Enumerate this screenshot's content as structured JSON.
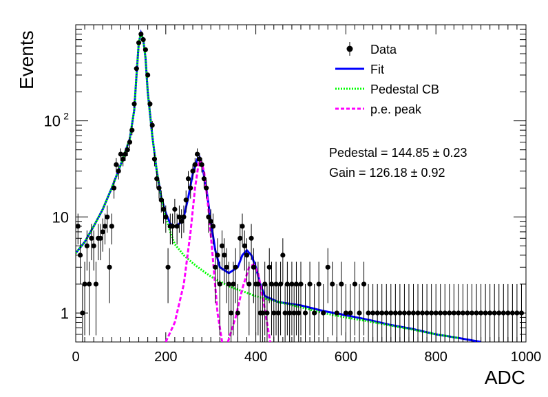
{
  "chart_data": {
    "type": "scatter",
    "xlabel": "ADC",
    "ylabel": "Events",
    "xlim": [
      0,
      1000
    ],
    "ylim": [
      0.5,
      1000
    ],
    "y_scale": "log",
    "grid": false,
    "legend_position": "top-right",
    "x_ticks": [
      {
        "value": 0,
        "label": "0"
      },
      {
        "value": 200,
        "label": "200"
      },
      {
        "value": 400,
        "label": "400"
      },
      {
        "value": 600,
        "label": "600"
      },
      {
        "value": 800,
        "label": "800"
      },
      {
        "value": 1000,
        "label": "1000"
      }
    ],
    "y_ticks": [
      {
        "value": 1,
        "label": "1"
      },
      {
        "value": 10,
        "label": "10"
      },
      {
        "value": 100,
        "label": "10",
        "sup": "2"
      }
    ],
    "legend": [
      {
        "label": "Data",
        "style": "marker",
        "color": "#000000"
      },
      {
        "label": "Fit",
        "style": "solid",
        "color": "#0000ff"
      },
      {
        "label": "Pedestal CB",
        "style": "dotted",
        "color": "#00ff00"
      },
      {
        "label": "p.e. peak",
        "style": "dashed",
        "color": "#ff00ff"
      }
    ],
    "annotations": [
      {
        "text": "Pedestal = 144.85 ± 0.23"
      },
      {
        "text": "Gain = 126.18 ± 0.92"
      }
    ],
    "series": [
      {
        "name": "Data",
        "kind": "points",
        "color": "#000000",
        "points": [
          [
            5,
            8
          ],
          [
            10,
            4
          ],
          [
            15,
            1
          ],
          [
            20,
            2
          ],
          [
            25,
            5
          ],
          [
            30,
            2
          ],
          [
            35,
            6
          ],
          [
            40,
            5
          ],
          [
            45,
            2
          ],
          [
            50,
            6
          ],
          [
            55,
            6
          ],
          [
            60,
            7
          ],
          [
            65,
            8
          ],
          [
            70,
            10
          ],
          [
            75,
            3
          ],
          [
            80,
            8
          ],
          [
            85,
            20
          ],
          [
            90,
            35
          ],
          [
            95,
            30
          ],
          [
            100,
            45
          ],
          [
            105,
            40
          ],
          [
            110,
            45
          ],
          [
            115,
            50
          ],
          [
            120,
            60
          ],
          [
            125,
            80
          ],
          [
            130,
            150
          ],
          [
            135,
            350
          ],
          [
            140,
            650
          ],
          [
            145,
            800
          ],
          [
            150,
            700
          ],
          [
            155,
            550
          ],
          [
            160,
            300
          ],
          [
            165,
            150
          ],
          [
            170,
            90
          ],
          [
            175,
            40
          ],
          [
            180,
            25
          ],
          [
            185,
            20
          ],
          [
            190,
            15
          ],
          [
            195,
            12
          ],
          [
            200,
            10
          ],
          [
            205,
            3
          ],
          [
            210,
            8
          ],
          [
            215,
            8
          ],
          [
            220,
            12
          ],
          [
            225,
            8
          ],
          [
            230,
            10
          ],
          [
            235,
            9
          ],
          [
            240,
            10
          ],
          [
            245,
            15
          ],
          [
            250,
            25
          ],
          [
            255,
            20
          ],
          [
            260,
            30
          ],
          [
            265,
            35
          ],
          [
            270,
            45
          ],
          [
            275,
            40
          ],
          [
            280,
            35
          ],
          [
            285,
            25
          ],
          [
            290,
            20
          ],
          [
            295,
            10
          ],
          [
            300,
            9
          ],
          [
            305,
            8
          ],
          [
            310,
            3
          ],
          [
            315,
            4
          ],
          [
            320,
            2
          ],
          [
            325,
            5
          ],
          [
            330,
            4
          ],
          [
            335,
            3
          ],
          [
            340,
            2
          ],
          [
            345,
            1
          ],
          [
            350,
            2
          ],
          [
            355,
            3
          ],
          [
            360,
            1
          ],
          [
            365,
            6
          ],
          [
            370,
            8
          ],
          [
            375,
            5
          ],
          [
            380,
            4
          ],
          [
            385,
            2
          ],
          [
            390,
            6
          ],
          [
            395,
            3
          ],
          [
            400,
            2
          ],
          [
            405,
            2
          ],
          [
            410,
            1
          ],
          [
            415,
            1
          ],
          [
            420,
            2
          ],
          [
            425,
            1
          ],
          [
            430,
            3
          ],
          [
            435,
            2
          ],
          [
            440,
            1
          ],
          [
            445,
            2
          ],
          [
            450,
            1
          ],
          [
            455,
            2
          ],
          [
            460,
            4
          ],
          [
            465,
            1
          ],
          [
            470,
            2
          ],
          [
            475,
            1
          ],
          [
            480,
            2
          ],
          [
            485,
            1
          ],
          [
            490,
            2
          ],
          [
            495,
            1
          ],
          [
            500,
            2
          ],
          [
            510,
            1
          ],
          [
            520,
            2
          ],
          [
            530,
            1
          ],
          [
            540,
            2
          ],
          [
            550,
            1
          ],
          [
            560,
            3
          ],
          [
            570,
            2
          ],
          [
            580,
            1
          ],
          [
            590,
            2
          ],
          [
            600,
            1
          ],
          [
            610,
            1
          ],
          [
            620,
            2
          ],
          [
            630,
            1
          ],
          [
            640,
            2
          ],
          [
            650,
            1
          ],
          [
            660,
            1
          ],
          [
            670,
            1
          ],
          [
            680,
            1
          ],
          [
            690,
            1
          ],
          [
            700,
            1
          ],
          [
            710,
            1
          ],
          [
            720,
            1
          ],
          [
            730,
            1
          ],
          [
            740,
            1
          ],
          [
            750,
            1
          ],
          [
            760,
            1
          ],
          [
            770,
            1
          ],
          [
            780,
            1
          ],
          [
            790,
            1
          ],
          [
            800,
            1
          ],
          [
            810,
            1
          ],
          [
            820,
            1
          ],
          [
            830,
            1
          ],
          [
            840,
            1
          ],
          [
            850,
            1
          ],
          [
            860,
            1
          ],
          [
            870,
            1
          ],
          [
            880,
            1
          ],
          [
            890,
            1
          ],
          [
            900,
            1
          ],
          [
            910,
            1
          ],
          [
            920,
            1
          ],
          [
            930,
            1
          ],
          [
            940,
            1
          ],
          [
            950,
            1
          ],
          [
            960,
            1
          ],
          [
            970,
            1
          ],
          [
            980,
            1
          ],
          [
            990,
            1
          ]
        ]
      },
      {
        "name": "Fit",
        "kind": "line",
        "color": "#0000ff",
        "points": [
          [
            0,
            4.2
          ],
          [
            20,
            5.5
          ],
          [
            40,
            8
          ],
          [
            60,
            12
          ],
          [
            80,
            20
          ],
          [
            100,
            35
          ],
          [
            120,
            65
          ],
          [
            130,
            130
          ],
          [
            135,
            300
          ],
          [
            140,
            650
          ],
          [
            145,
            820
          ],
          [
            150,
            700
          ],
          [
            155,
            450
          ],
          [
            160,
            200
          ],
          [
            170,
            70
          ],
          [
            180,
            30
          ],
          [
            190,
            16
          ],
          [
            200,
            11
          ],
          [
            210,
            8.5
          ],
          [
            220,
            8
          ],
          [
            230,
            8.5
          ],
          [
            240,
            10
          ],
          [
            250,
            16
          ],
          [
            260,
            28
          ],
          [
            270,
            40
          ],
          [
            275,
            42
          ],
          [
            280,
            36
          ],
          [
            290,
            20
          ],
          [
            300,
            9
          ],
          [
            310,
            4.5
          ],
          [
            320,
            3
          ],
          [
            340,
            2.6
          ],
          [
            360,
            3
          ],
          [
            370,
            4
          ],
          [
            380,
            4.5
          ],
          [
            390,
            4
          ],
          [
            400,
            3
          ],
          [
            410,
            2
          ],
          [
            420,
            1.5
          ],
          [
            450,
            1.3
          ],
          [
            500,
            1.2
          ],
          [
            550,
            1.05
          ],
          [
            600,
            0.95
          ],
          [
            650,
            0.85
          ],
          [
            700,
            0.75
          ],
          [
            750,
            0.68
          ],
          [
            800,
            0.6
          ],
          [
            850,
            0.55
          ],
          [
            900,
            0.5
          ]
        ]
      },
      {
        "name": "Pedestal CB",
        "kind": "line",
        "color": "#00ff00",
        "points": [
          [
            0,
            4.2
          ],
          [
            20,
            5.5
          ],
          [
            40,
            8
          ],
          [
            60,
            12
          ],
          [
            80,
            20
          ],
          [
            100,
            35
          ],
          [
            120,
            65
          ],
          [
            130,
            130
          ],
          [
            135,
            300
          ],
          [
            140,
            650
          ],
          [
            145,
            820
          ],
          [
            150,
            700
          ],
          [
            155,
            450
          ],
          [
            160,
            200
          ],
          [
            170,
            70
          ],
          [
            180,
            30
          ],
          [
            190,
            16
          ],
          [
            200,
            10
          ],
          [
            210,
            7
          ],
          [
            220,
            5.2
          ],
          [
            240,
            4
          ],
          [
            260,
            3.3
          ],
          [
            280,
            2.8
          ],
          [
            300,
            2.4
          ],
          [
            340,
            1.9
          ],
          [
            400,
            1.5
          ],
          [
            450,
            1.3
          ],
          [
            500,
            1.15
          ],
          [
            550,
            1.0
          ],
          [
            600,
            0.9
          ],
          [
            650,
            0.82
          ],
          [
            700,
            0.74
          ],
          [
            750,
            0.67
          ],
          [
            800,
            0.6
          ],
          [
            850,
            0.55
          ]
        ]
      },
      {
        "name": "p.e. peak",
        "kind": "line",
        "color": "#ff00ff",
        "points": [
          [
            200,
            0.5
          ],
          [
            220,
            0.8
          ],
          [
            240,
            2
          ],
          [
            255,
            7
          ],
          [
            265,
            20
          ],
          [
            275,
            42
          ],
          [
            285,
            30
          ],
          [
            295,
            12
          ],
          [
            305,
            3.5
          ],
          [
            315,
            1
          ],
          [
            325,
            0.5
          ]
        ]
      },
      {
        "name": "p.e. peak (2nd)",
        "kind": "line",
        "color": "#ff00ff",
        "points": [
          [
            338,
            0.5
          ],
          [
            355,
            0.9
          ],
          [
            370,
            1.8
          ],
          [
            385,
            3
          ],
          [
            395,
            3.2
          ],
          [
            405,
            2.6
          ],
          [
            420,
            1.1
          ],
          [
            432,
            0.5
          ]
        ]
      }
    ]
  }
}
